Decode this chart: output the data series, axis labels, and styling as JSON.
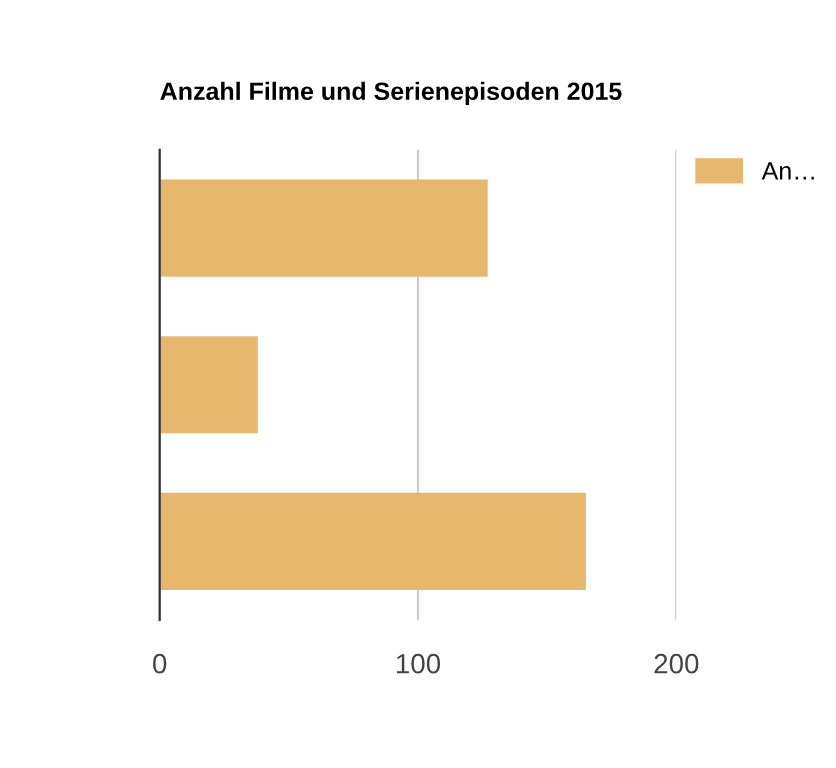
{
  "chart_data": {
    "type": "bar",
    "orientation": "horizontal",
    "title": "Anzahl Filme und Serienepisoden 2015",
    "categories": [
      null,
      null,
      null
    ],
    "series": [
      {
        "name": "An…",
        "color": "#e8b76e",
        "values": [
          127,
          38,
          165
        ]
      }
    ],
    "xlim": [
      0,
      200
    ],
    "xticks": [
      0,
      100,
      200
    ],
    "grid": "x",
    "legend": "top right"
  }
}
